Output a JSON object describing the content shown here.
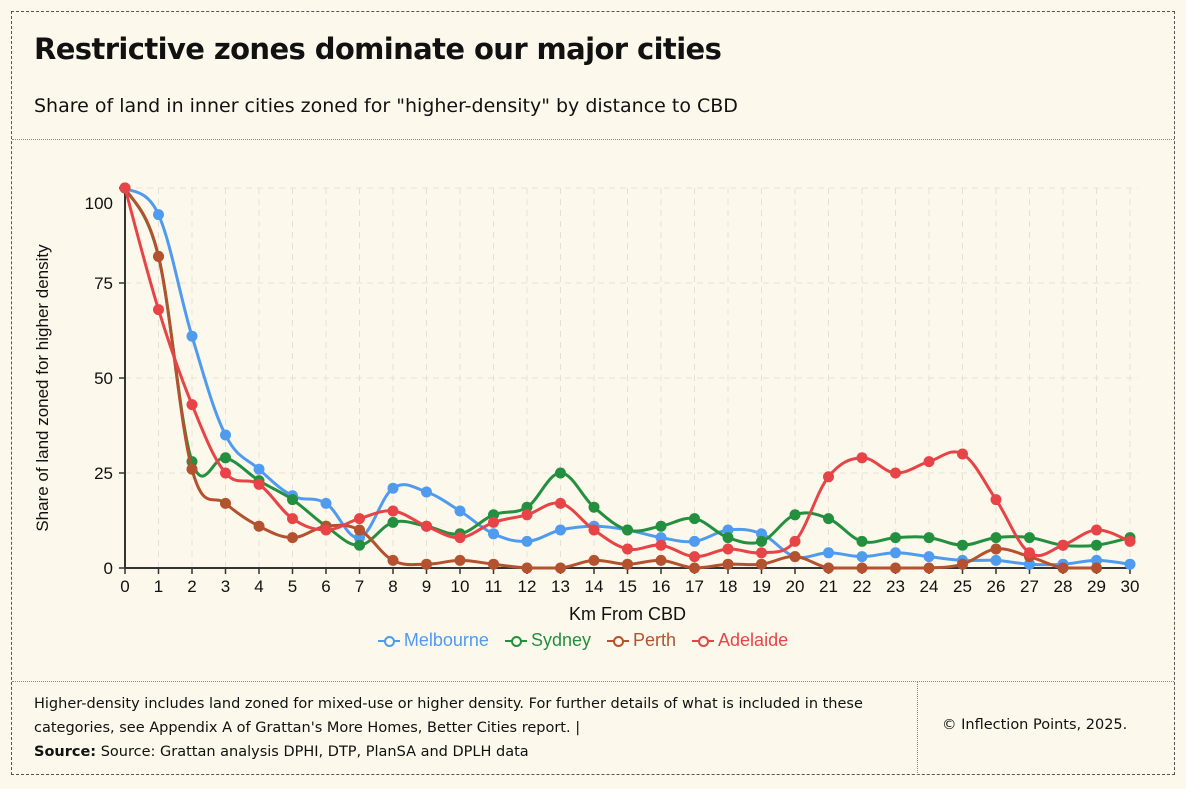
{
  "header": {
    "title": "Restrictive zones dominate our major cities",
    "subtitle": "Share of land in inner cities zoned for \"higher-density\" by distance to CBD"
  },
  "footer": {
    "note": "Higher-density includes land zoned for mixed-use or higher density. For further details of what is included in these categories, see Appendix A of Grattan's More Homes, Better Cities report.  |",
    "source_label": "Source:",
    "source_text": " Source: Grattan analysis DPHI, DTP, PlanSA and DPLH data",
    "copyright": "© Inflection Points, 2025."
  },
  "chart_data": {
    "type": "line",
    "title": "Restrictive zones dominate our major cities",
    "xlabel": "Km From CBD",
    "ylabel": "Share of land zoned for higher density",
    "xlim": [
      0,
      30
    ],
    "ylim": [
      0,
      100
    ],
    "x": [
      0,
      1,
      2,
      3,
      4,
      5,
      6,
      7,
      8,
      9,
      10,
      11,
      12,
      13,
      14,
      15,
      16,
      17,
      18,
      19,
      20,
      21,
      22,
      23,
      24,
      25,
      26,
      27,
      28,
      29,
      30
    ],
    "x_ticks": [
      "0",
      "1",
      "2",
      "3",
      "4",
      "5",
      "6",
      "7",
      "8",
      "9",
      "10",
      "11",
      "12",
      "13",
      "14",
      "15",
      "16",
      "17",
      "18",
      "19",
      "20",
      "21",
      "22",
      "23",
      "24",
      "25",
      "26",
      "27",
      "28",
      "29",
      "30"
    ],
    "y_ticks": [
      "0",
      "25",
      "50",
      "75",
      "100"
    ],
    "grid": true,
    "legend_position": "bottom",
    "series": [
      {
        "name": "Melbourne",
        "color": "#4f9bef",
        "values": [
          100,
          93,
          61,
          35,
          26,
          19,
          17,
          8,
          21,
          20,
          15,
          9,
          7,
          10,
          11,
          10,
          8,
          7,
          10,
          9,
          3,
          4,
          3,
          4,
          3,
          2,
          2,
          1,
          1,
          2,
          1
        ]
      },
      {
        "name": "Sydney",
        "color": "#23903f",
        "values": [
          100,
          82,
          28,
          29,
          23,
          18,
          11,
          6,
          12,
          11,
          9,
          14,
          16,
          25,
          16,
          10,
          11,
          13,
          8,
          7,
          14,
          13,
          7,
          8,
          8,
          6,
          8,
          8,
          6,
          6,
          8
        ]
      },
      {
        "name": "Perth",
        "color": "#b4522f",
        "values": [
          100,
          82,
          26,
          17,
          11,
          8,
          11,
          10,
          2,
          1,
          2,
          1,
          0,
          0,
          2,
          1,
          2,
          0,
          1,
          1,
          3,
          0,
          0,
          0,
          0,
          1,
          5,
          3,
          0,
          0,
          null
        ]
      },
      {
        "name": "Adelaide",
        "color": "#e84447",
        "values": [
          100,
          68,
          43,
          25,
          22,
          13,
          10,
          13,
          15,
          11,
          8,
          12,
          14,
          17,
          10,
          5,
          6,
          3,
          5,
          4,
          7,
          24,
          29,
          25,
          28,
          30,
          18,
          4,
          6,
          10,
          7
        ]
      }
    ]
  }
}
